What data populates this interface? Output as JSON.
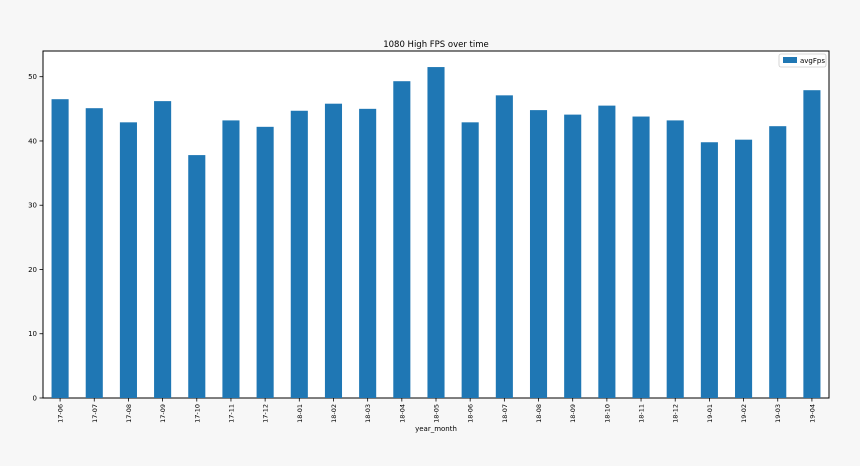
{
  "chart_data": {
    "type": "bar",
    "title": "1080 High FPS over time",
    "xlabel": "year_month",
    "ylabel": "",
    "categories": [
      "17-06",
      "17-07",
      "17-08",
      "17-09",
      "17-10",
      "17-11",
      "17-12",
      "18-01",
      "18-02",
      "18-03",
      "18-04",
      "18-05",
      "18-06",
      "18-07",
      "18-08",
      "18-09",
      "18-10",
      "18-11",
      "18-12",
      "19-01",
      "19-02",
      "19-03",
      "19-04"
    ],
    "series": [
      {
        "name": "avgFps",
        "color": "#1f77b4",
        "values": [
          46.5,
          45.1,
          42.9,
          46.2,
          37.8,
          43.2,
          42.2,
          44.7,
          45.8,
          45.0,
          49.3,
          51.5,
          42.9,
          47.1,
          44.8,
          44.1,
          45.5,
          43.8,
          43.2,
          39.8,
          40.2,
          42.3,
          47.9
        ]
      }
    ],
    "ylim": [
      0,
      54
    ],
    "yticks": [
      0,
      10,
      20,
      30,
      40,
      50
    ],
    "grid": false,
    "legend_position": "top-right"
  }
}
